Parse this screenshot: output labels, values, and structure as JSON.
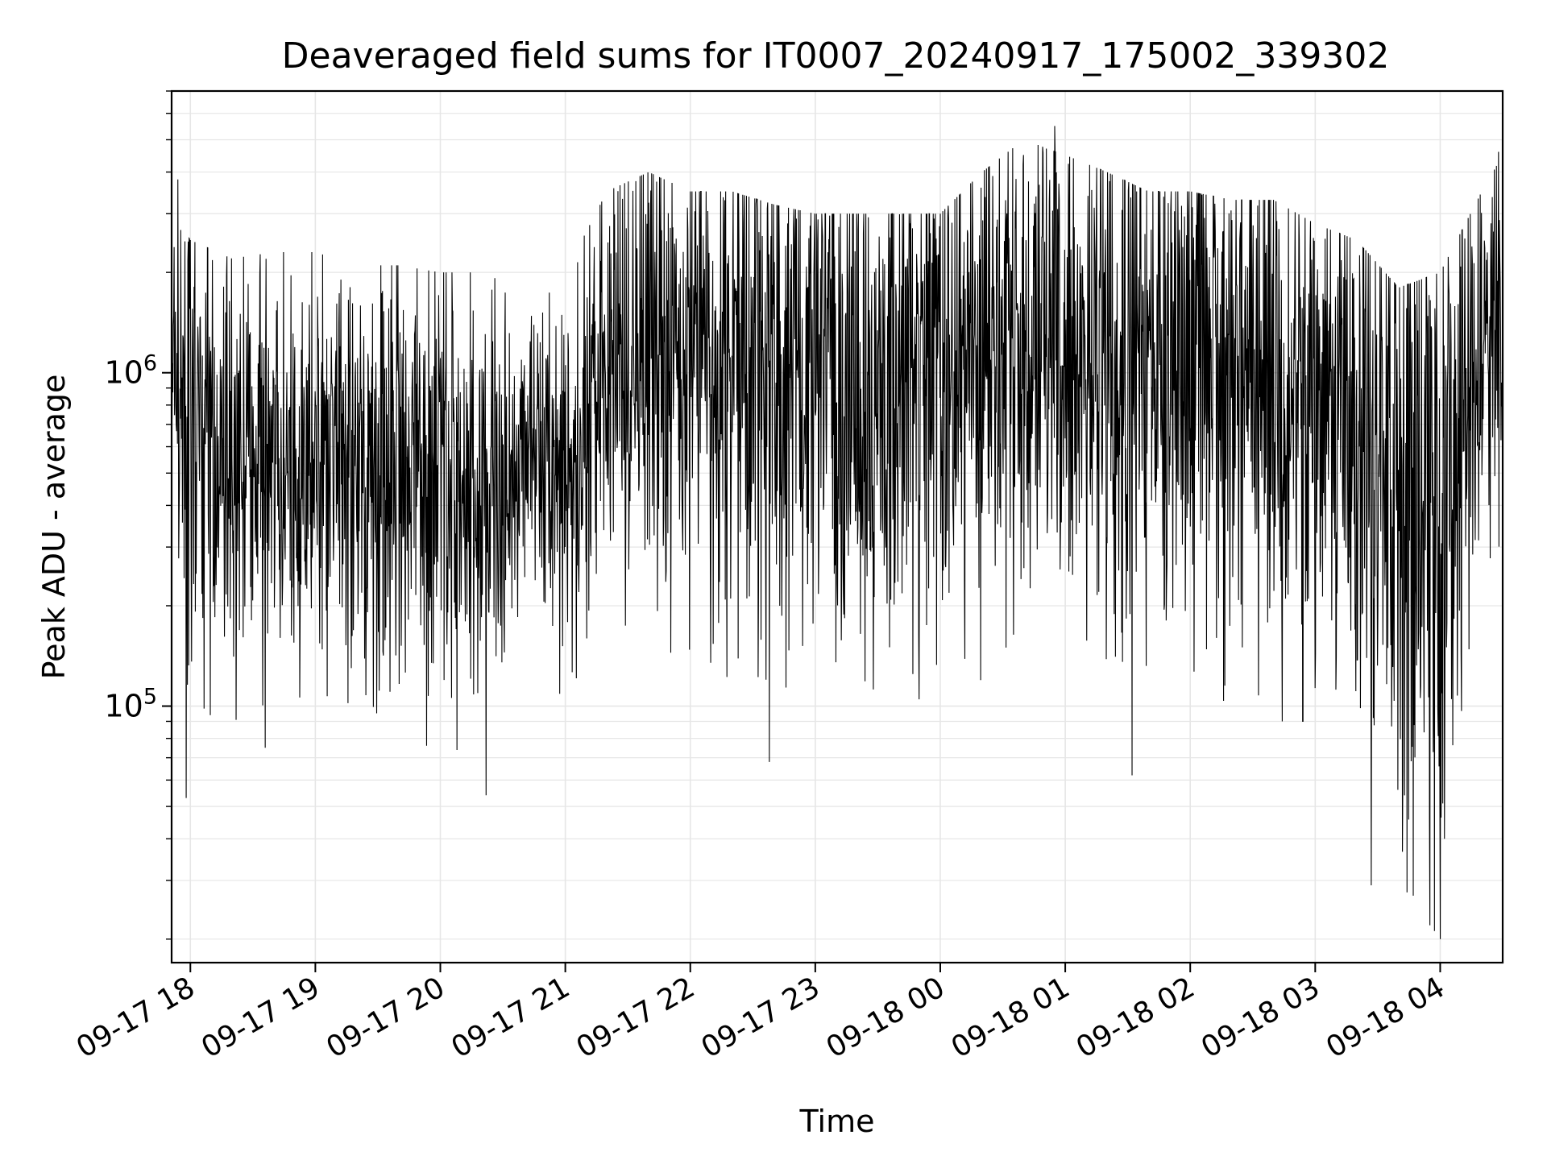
{
  "chart_data": {
    "type": "line",
    "title": "Deaveraged field sums for IT0007_20240917_175002_339302",
    "xlabel": "Time",
    "ylabel": "Peak ADU - average",
    "y_scale": "log",
    "ylim": [
      17000,
      7000000
    ],
    "xlim": [
      "2024-09-17T17:51:00",
      "2024-09-18T04:30:00"
    ],
    "grid": true,
    "legend": "none",
    "x_ticks": [
      {
        "t": "2024-09-17T18:00:00",
        "label": "09-17 18"
      },
      {
        "t": "2024-09-17T19:00:00",
        "label": "09-17 19"
      },
      {
        "t": "2024-09-17T20:00:00",
        "label": "09-17 20"
      },
      {
        "t": "2024-09-17T21:00:00",
        "label": "09-17 21"
      },
      {
        "t": "2024-09-17T22:00:00",
        "label": "09-17 22"
      },
      {
        "t": "2024-09-17T23:00:00",
        "label": "09-17 23"
      },
      {
        "t": "2024-09-18T00:00:00",
        "label": "09-18 00"
      },
      {
        "t": "2024-09-18T01:00:00",
        "label": "09-18 01"
      },
      {
        "t": "2024-09-18T02:00:00",
        "label": "09-18 02"
      },
      {
        "t": "2024-09-18T03:00:00",
        "label": "09-18 03"
      },
      {
        "t": "2024-09-18T04:00:00",
        "label": "09-18 04"
      }
    ],
    "y_major_ticks": [
      {
        "v": 100000,
        "base": "10",
        "exp": "5"
      },
      {
        "v": 1000000,
        "base": "10",
        "exp": "6"
      }
    ],
    "line_color": "#000000",
    "grid_color": "#e6e6e6",
    "series": [
      {
        "x": [
          "2024-09-17T17:51:00",
          "2024-09-17T18:00:00",
          "2024-09-17T18:20:00",
          "2024-09-17T18:40:00",
          "2024-09-17T19:00:00",
          "2024-09-17T19:20:00",
          "2024-09-17T19:40:00",
          "2024-09-17T20:00:00",
          "2024-09-17T20:20:00",
          "2024-09-17T20:40:00",
          "2024-09-17T21:00:00",
          "2024-09-17T21:20:00",
          "2024-09-17T21:40:00",
          "2024-09-17T22:00:00",
          "2024-09-17T22:20:00",
          "2024-09-17T22:40:00",
          "2024-09-17T23:00:00",
          "2024-09-17T23:20:00",
          "2024-09-17T23:40:00",
          "2024-09-18T00:00:00",
          "2024-09-18T00:20:00",
          "2024-09-18T00:40:00",
          "2024-09-18T01:00:00",
          "2024-09-18T01:20:00",
          "2024-09-18T01:40:00",
          "2024-09-18T02:00:00",
          "2024-09-18T02:20:00",
          "2024-09-18T02:40:00",
          "2024-09-18T03:00:00",
          "2024-09-18T03:20:00",
          "2024-09-18T03:40:00",
          "2024-09-18T04:00:00",
          "2024-09-18T04:20:00",
          "2024-09-18T04:30:00"
        ],
        "y": [
          1000000,
          800000,
          600000,
          500000,
          550000,
          520000,
          600000,
          450000,
          420000,
          600000,
          500000,
          900000,
          1100000,
          1100000,
          1000000,
          1100000,
          950000,
          900000,
          950000,
          1000000,
          1150000,
          1200000,
          1200000,
          1200000,
          1100000,
          1100000,
          1000000,
          900000,
          800000,
          600000,
          500000,
          500000,
          1100000,
          1300000
        ],
        "low": [
          300000,
          80000,
          90000,
          100000,
          110000,
          100000,
          90000,
          70000,
          80000,
          110000,
          100000,
          140000,
          150000,
          140000,
          120000,
          120000,
          100000,
          100000,
          100000,
          110000,
          120000,
          130000,
          150000,
          120000,
          110000,
          120000,
          100000,
          90000,
          90000,
          50000,
          30000,
          20000,
          150000,
          300000
        ],
        "high": [
          3000000,
          2500000,
          2200000,
          2300000,
          2300000,
          2100000,
          2100000,
          2000000,
          2000000,
          2100000,
          2000000,
          3500000,
          4000000,
          3500000,
          3500000,
          3200000,
          3000000,
          3000000,
          3000000,
          3000000,
          4000000,
          5000000,
          4500000,
          4000000,
          3500000,
          3500000,
          3300000,
          3300000,
          2800000,
          2500000,
          1800000,
          2000000,
          3500000,
          4500000
        ]
      }
    ],
    "notable_spikes": [
      {
        "t": "2024-09-17T17:54:00",
        "y": 3800000
      },
      {
        "t": "2024-09-17T17:58:00",
        "y": 53000
      },
      {
        "t": "2024-09-17T18:36:00",
        "y": 75000
      },
      {
        "t": "2024-09-17T20:22:00",
        "y": 54000
      },
      {
        "t": "2024-09-17T22:38:00",
        "y": 68000
      },
      {
        "t": "2024-09-18T00:40:00",
        "y": 4500000
      },
      {
        "t": "2024-09-18T00:55:00",
        "y": 5500000
      },
      {
        "t": "2024-09-18T01:32:00",
        "y": 62000
      },
      {
        "t": "2024-09-18T03:27:00",
        "y": 29000
      },
      {
        "t": "2024-09-18T03:47:00",
        "y": 27000
      },
      {
        "t": "2024-09-18T03:55:00",
        "y": 22000
      },
      {
        "t": "2024-09-18T04:00:00",
        "y": 20000
      },
      {
        "t": "2024-09-18T04:02:00",
        "y": 40000
      },
      {
        "t": "2024-09-18T04:28:00",
        "y": 4600000
      }
    ]
  }
}
